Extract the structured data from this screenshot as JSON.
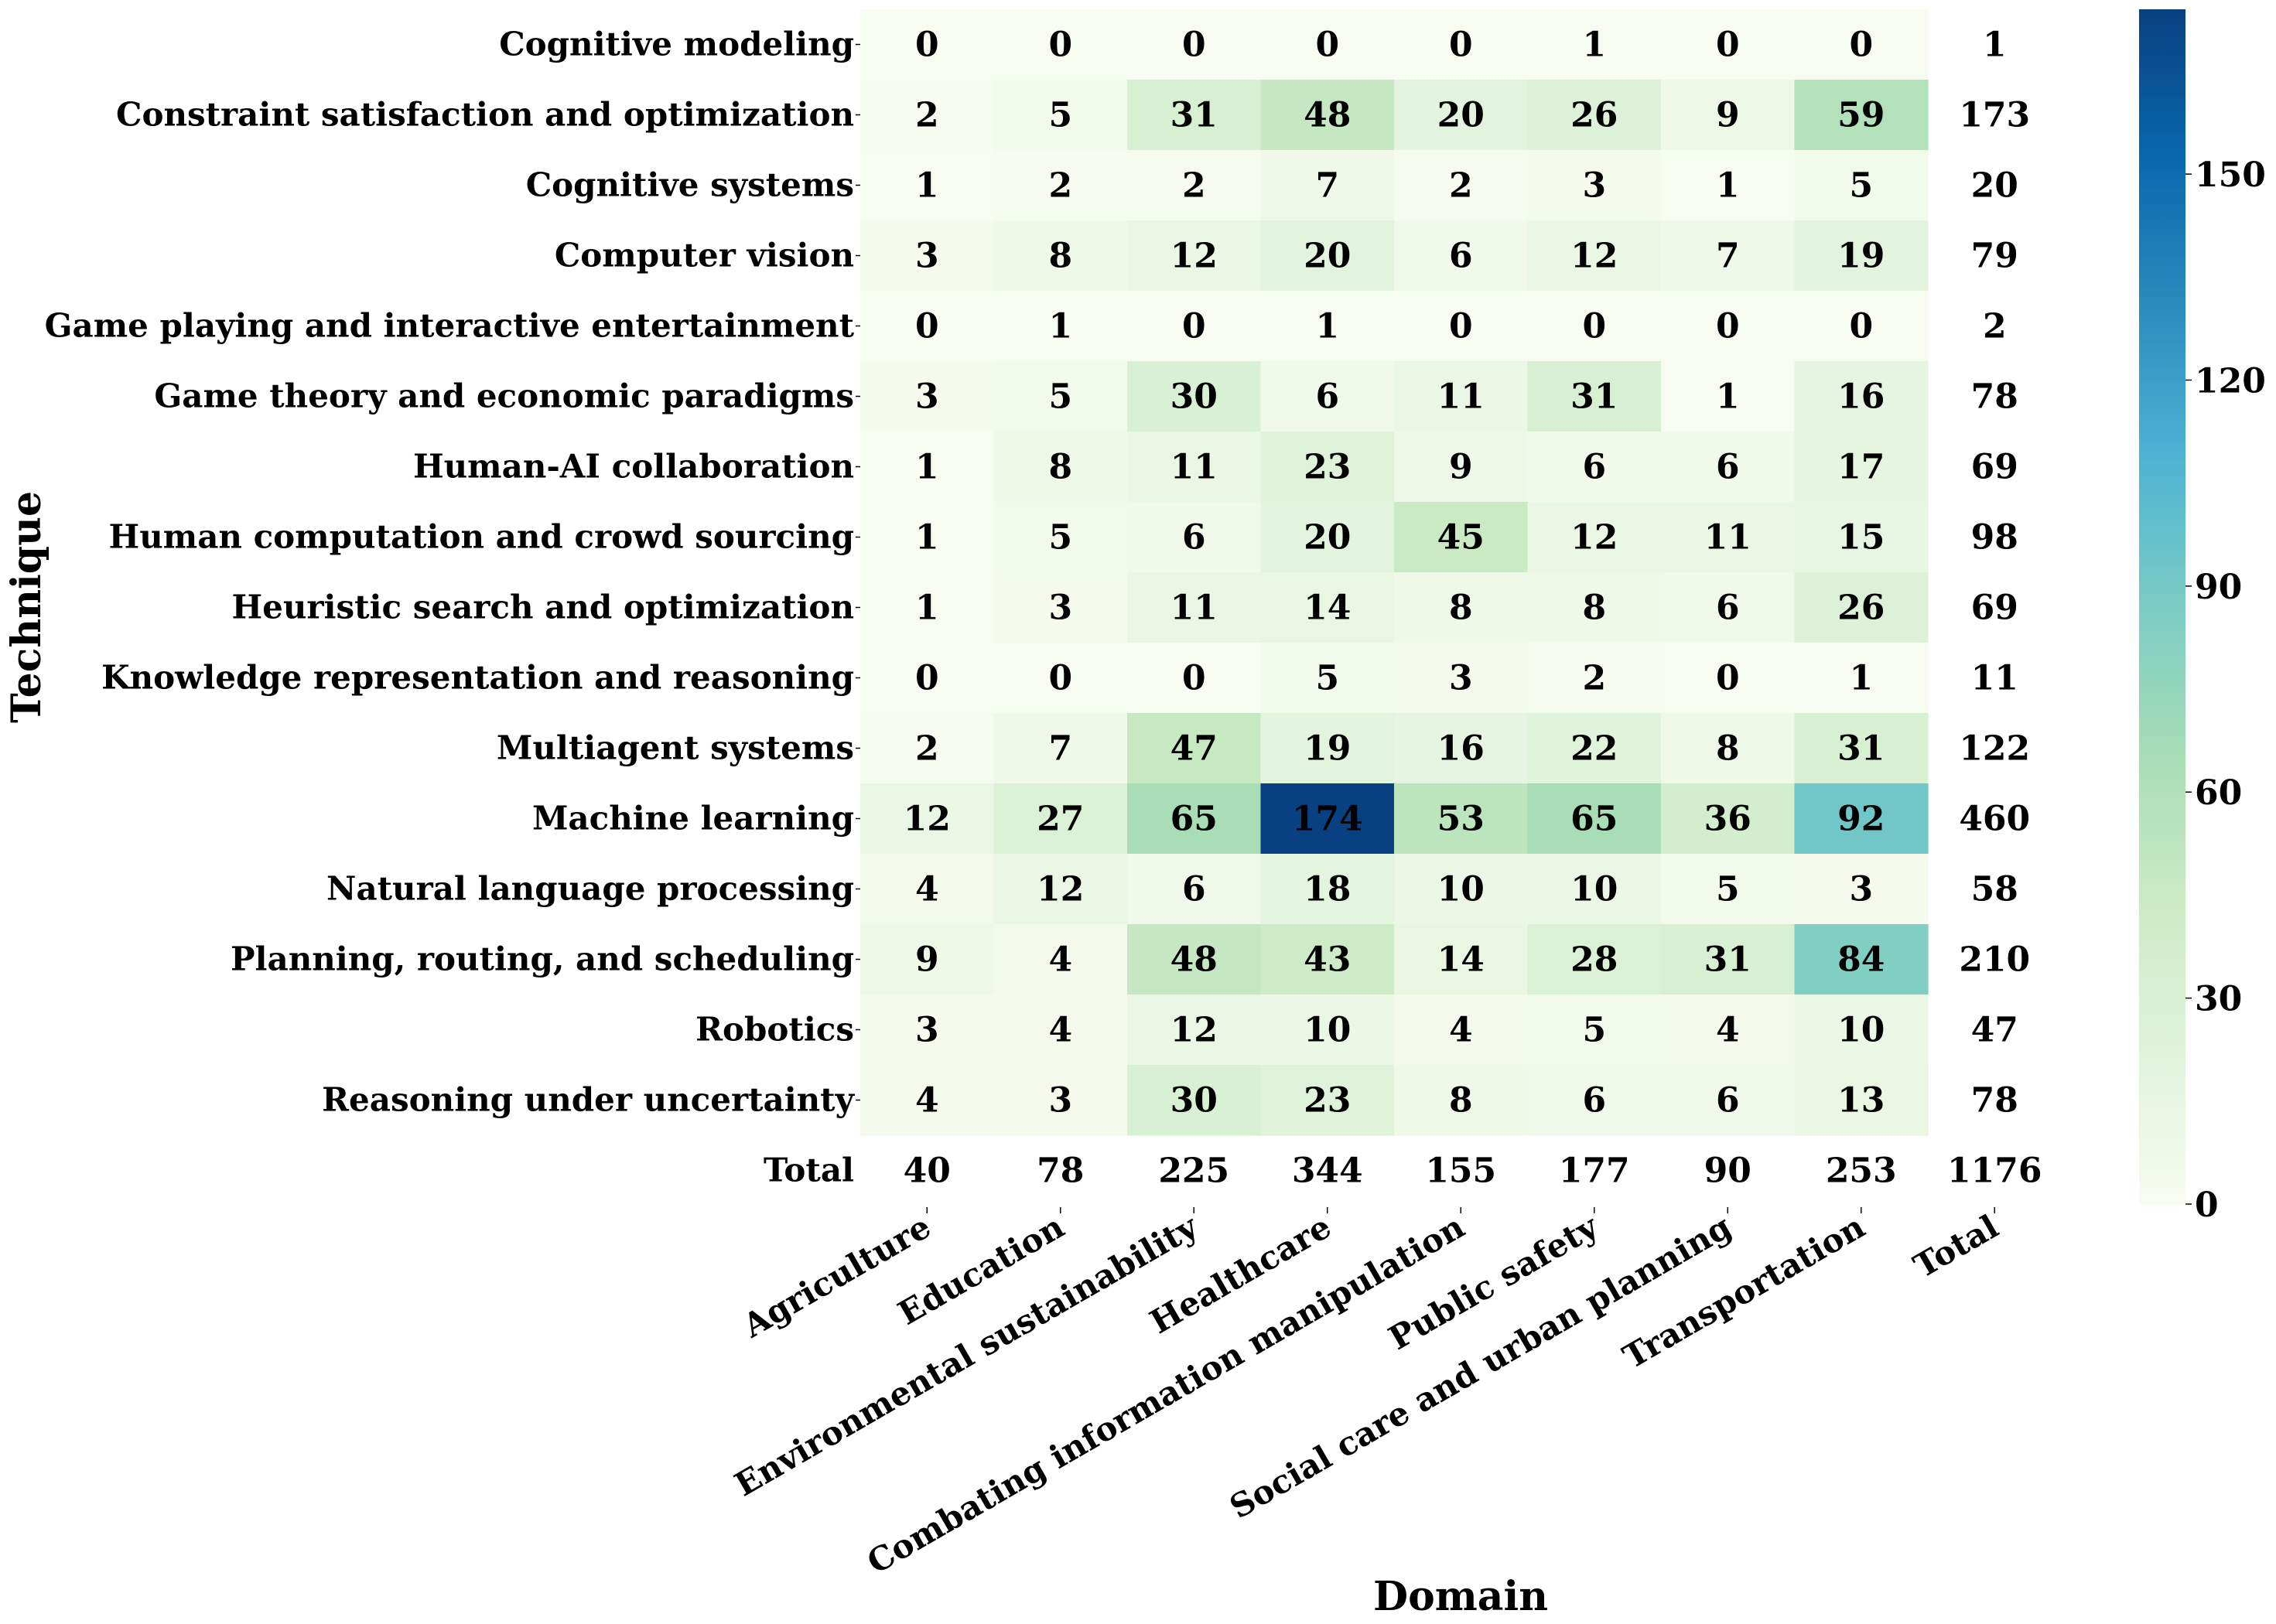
{
  "chart_data": {
    "type": "heatmap",
    "title": "",
    "xlabel": "Domain",
    "ylabel": "Technique",
    "rows": [
      "Cognitive modeling",
      "Constraint satisfaction and optimization",
      "Cognitive systems",
      "Computer vision",
      "Game playing and interactive entertainment",
      "Game theory and economic paradigms",
      "Human-AI collaboration",
      "Human computation and crowd sourcing",
      "Heuristic search and optimization",
      "Knowledge representation and reasoning",
      "Multiagent systems",
      "Machine learning",
      "Natural language processing",
      "Planning, routing, and scheduling",
      "Robotics",
      "Reasoning under uncertainty"
    ],
    "columns": [
      "Agriculture",
      "Education",
      "Environmental sustainability",
      "Healthcare",
      "Combating information manipulation",
      "Public safety",
      "Social care and urban planning",
      "Transportation"
    ],
    "values": [
      [
        0,
        0,
        0,
        0,
        0,
        1,
        0,
        0
      ],
      [
        2,
        5,
        31,
        48,
        20,
        26,
        9,
        59
      ],
      [
        1,
        2,
        2,
        7,
        2,
        3,
        1,
        5
      ],
      [
        3,
        8,
        12,
        20,
        6,
        12,
        7,
        19
      ],
      [
        0,
        1,
        0,
        1,
        0,
        0,
        0,
        0
      ],
      [
        3,
        5,
        30,
        6,
        11,
        31,
        1,
        16
      ],
      [
        1,
        8,
        11,
        23,
        9,
        6,
        6,
        17
      ],
      [
        1,
        5,
        6,
        20,
        45,
        12,
        11,
        15
      ],
      [
        1,
        3,
        11,
        14,
        8,
        8,
        6,
        26
      ],
      [
        0,
        0,
        0,
        5,
        3,
        2,
        0,
        1
      ],
      [
        2,
        7,
        47,
        19,
        16,
        22,
        8,
        31
      ],
      [
        12,
        27,
        65,
        174,
        53,
        65,
        36,
        92
      ],
      [
        4,
        12,
        6,
        18,
        10,
        10,
        5,
        3
      ],
      [
        9,
        4,
        48,
        43,
        14,
        28,
        31,
        84
      ],
      [
        3,
        4,
        12,
        10,
        4,
        5,
        4,
        10
      ],
      [
        4,
        3,
        30,
        23,
        8,
        6,
        6,
        13
      ]
    ],
    "row_totals": [
      1,
      173,
      20,
      79,
      2,
      78,
      69,
      98,
      69,
      11,
      122,
      460,
      58,
      210,
      47,
      78
    ],
    "column_totals": [
      40,
      78,
      225,
      344,
      155,
      177,
      90,
      253
    ],
    "grand_total": 1176,
    "total_label": "Total",
    "colorbar": {
      "colormap": "GnBu",
      "vmin": 0,
      "vmax": 174,
      "ticks": [
        0,
        30,
        60,
        90,
        120,
        150
      ]
    }
  }
}
